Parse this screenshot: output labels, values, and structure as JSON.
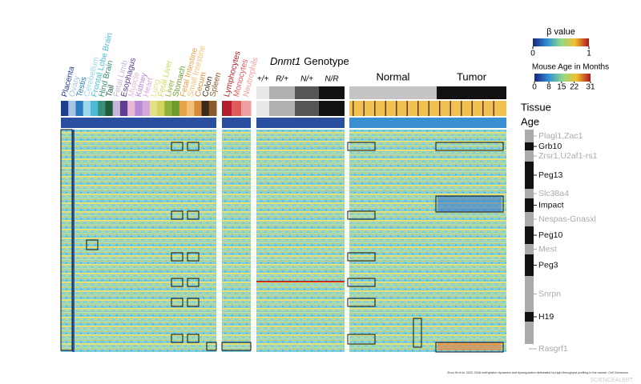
{
  "beta_legend": {
    "title": "β value",
    "ticks": [
      0,
      1
    ]
  },
  "age_legend": {
    "title": "Mouse Age in Months",
    "lim": [
      0,
      31
    ],
    "ticks": [
      0,
      8,
      15,
      22,
      31
    ]
  },
  "tissues": [
    {
      "name": "Placenta",
      "color": "#1f3f8f"
    },
    {
      "name": "Ovary",
      "color": "#a9c4e6"
    },
    {
      "name": "Testis",
      "color": "#2b7bbf"
    },
    {
      "name": "Cerebellum",
      "color": "#9fd6e8"
    },
    {
      "name": "Frontal Lobe Brain",
      "color": "#4bbbd6"
    },
    {
      "name": "Hind Brain",
      "color": "#3a8f7a"
    },
    {
      "name": "Tail",
      "color": "#1e5c3a"
    },
    {
      "name": "Fetal Limb",
      "color": "#c9b3dd"
    },
    {
      "name": "Esophagus",
      "color": "#5c3d8f"
    },
    {
      "name": "Muscle",
      "color": "#e8b8d6"
    },
    {
      "name": "Kidney",
      "color": "#b58ad0"
    },
    {
      "name": "Heart",
      "color": "#d6a6e0"
    },
    {
      "name": "Lung",
      "color": "#e3e08a"
    },
    {
      "name": "Fetal Liver",
      "color": "#d2d65e"
    },
    {
      "name": "Liver",
      "color": "#8fb33a"
    },
    {
      "name": "Stomach",
      "color": "#6a9c2e"
    },
    {
      "name": "Fetal Intestine",
      "color": "#e8a24a"
    },
    {
      "name": "Small Intestine",
      "color": "#f2c27a"
    },
    {
      "name": "Cecum",
      "color": "#d98a3a"
    },
    {
      "name": "Colon",
      "color": "#3a2a1a"
    },
    {
      "name": "Spleen",
      "color": "#8a5a2a"
    },
    {
      "name": "Lymphocytes",
      "color": "#b21e2e"
    },
    {
      "name": "Monocytes",
      "color": "#e05a5a"
    },
    {
      "name": "Neutrophils",
      "color": "#f0a0a0"
    }
  ],
  "genotype": {
    "title_italic": "Dnmt1",
    "title_rest": "Genotype",
    "groups": [
      {
        "label": "+/+",
        "color": "#e8e8e8"
      },
      {
        "label": "R/+",
        "color": "#b0b0b0"
      },
      {
        "label": "N/+",
        "color": "#555555"
      },
      {
        "label": "N/R",
        "color": "#111111"
      }
    ]
  },
  "status": [
    {
      "label": "Normal",
      "color": "#c4c4c4"
    },
    {
      "label": "Tumor",
      "color": "#111111"
    }
  ],
  "row_labels": {
    "tissue": "Tissue",
    "age": "Age"
  },
  "genes": [
    {
      "name": "Plagl1,Zac1",
      "color": "#aaaaaa"
    },
    {
      "name": "Grb10",
      "color": "#111111"
    },
    {
      "name": "Zrsr1,U2af1-rs1",
      "color": "#aaaaaa"
    },
    {
      "name": "Peg13",
      "color": "#111111"
    },
    {
      "name": "Slc38a4",
      "color": "#aaaaaa"
    },
    {
      "name": "Impact",
      "color": "#111111"
    },
    {
      "name": "Nespas-Gnasxl",
      "color": "#aaaaaa"
    },
    {
      "name": "Peg10",
      "color": "#111111"
    },
    {
      "name": "Mest",
      "color": "#aaaaaa"
    },
    {
      "name": "Peg3",
      "color": "#111111"
    },
    {
      "name": "Snrpn",
      "color": "#aaaaaa"
    },
    {
      "name": "H19",
      "color": "#111111"
    },
    {
      "name": "Rasgrf1",
      "color": "#aaaaaa"
    }
  ],
  "citation": "Zhou W et al. 2022. DNA methylation dynamics and dysregulation delineated by high-throughput profiling in the mouse. Cell Genomics.",
  "watermark": "SCIENCEALERT"
}
